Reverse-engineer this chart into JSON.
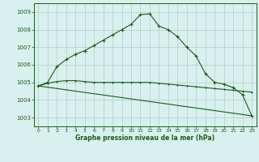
{
  "title": "Graphe pression niveau de la mer (hPa)",
  "bg_color": "#d8f0ee",
  "grid_color": "#b8ccc8",
  "line_color": "#1a5c1a",
  "text_color": "#1a5c1a",
  "ylim": [
    1002.5,
    1009.5
  ],
  "xlim": [
    -0.5,
    23.5
  ],
  "yticks": [
    1003,
    1004,
    1005,
    1006,
    1007,
    1008,
    1009
  ],
  "xticks": [
    0,
    1,
    2,
    3,
    4,
    5,
    6,
    7,
    8,
    9,
    10,
    11,
    12,
    13,
    14,
    15,
    16,
    17,
    18,
    19,
    20,
    21,
    22,
    23
  ],
  "line1_x": [
    0,
    1,
    2,
    3,
    4,
    5,
    6,
    7,
    8,
    9,
    10,
    11,
    12,
    13,
    14,
    15,
    16,
    17,
    18,
    19,
    20,
    21,
    22,
    23
  ],
  "line1_y": [
    1004.8,
    1005.0,
    1005.9,
    1006.3,
    1006.6,
    1006.8,
    1007.1,
    1007.4,
    1007.7,
    1008.0,
    1008.3,
    1008.85,
    1008.9,
    1008.2,
    1008.0,
    1007.6,
    1007.0,
    1006.5,
    1005.5,
    1005.0,
    1004.9,
    1004.7,
    1004.3,
    1003.1
  ],
  "line2_x": [
    0,
    1,
    2,
    3,
    4,
    5,
    6,
    7,
    8,
    9,
    10,
    11,
    12,
    13,
    14,
    15,
    16,
    17,
    18,
    19,
    20,
    21,
    22,
    23
  ],
  "line2_y": [
    1004.8,
    1004.95,
    1005.05,
    1005.1,
    1005.1,
    1005.05,
    1005.0,
    1005.0,
    1005.0,
    1005.0,
    1005.0,
    1005.0,
    1005.0,
    1004.95,
    1004.9,
    1004.85,
    1004.8,
    1004.75,
    1004.7,
    1004.65,
    1004.6,
    1004.55,
    1004.5,
    1004.45
  ],
  "line3_x": [
    0,
    23
  ],
  "line3_y": [
    1004.8,
    1003.1
  ]
}
